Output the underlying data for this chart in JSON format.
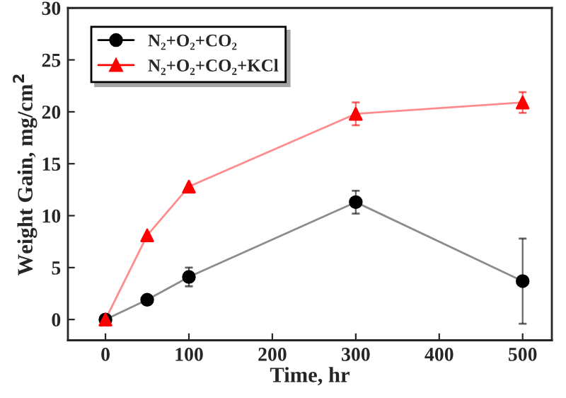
{
  "chart_data": {
    "type": "line",
    "xlabel": "Time, hr",
    "ylabel": "Weight Gain, mg/cm$^{2}$",
    "x": [
      0,
      50,
      100,
      300,
      500
    ],
    "series": [
      {
        "name": "N₂+O₂+CO₂",
        "color": "#000000",
        "marker": "circle",
        "values": [
          0,
          1.9,
          4.1,
          11.3,
          3.7
        ],
        "errors": [
          null,
          null,
          0.9,
          1.1,
          4.1
        ]
      },
      {
        "name": "N₂+O₂+CO₂+KCl",
        "color": "#ff0000",
        "marker": "triangle",
        "values": [
          0,
          8.1,
          12.8,
          19.8,
          20.9
        ],
        "errors": [
          null,
          null,
          null,
          1.1,
          1.0
        ]
      }
    ],
    "xlim": [
      -45,
      535
    ],
    "ylim": [
      -2,
      30
    ],
    "xticks": [
      0,
      100,
      200,
      300,
      400,
      500
    ],
    "yticks": [
      0,
      5,
      10,
      15,
      20,
      25,
      30
    ],
    "grid": false,
    "legend": "top left"
  }
}
